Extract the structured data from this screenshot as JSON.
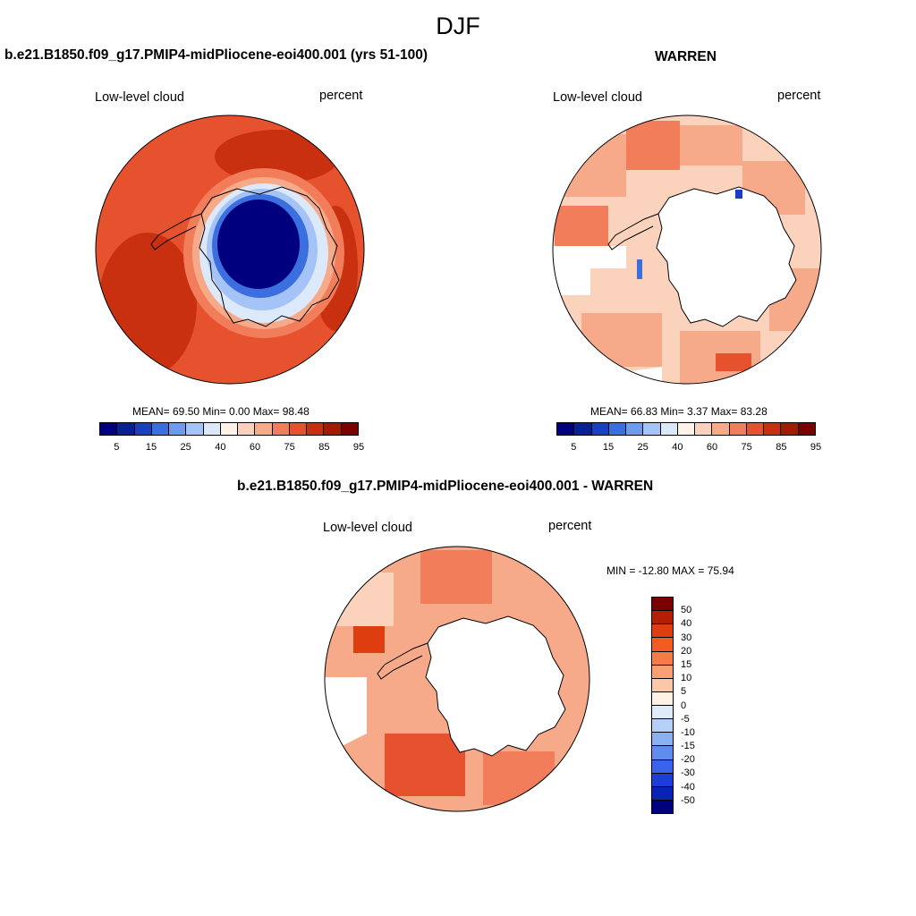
{
  "figure": {
    "title": "DJF"
  },
  "panels": [
    {
      "title": "b.e21.B1850.f09_g17.PMIP4-midPliocene-eoi400.001 (yrs 51-100)",
      "left_label": "Low-level cloud",
      "right_label": "percent",
      "stats": "MEAN=  69.50  Min=   0.00  Max=  98.48"
    },
    {
      "title": "WARREN",
      "left_label": "Low-level cloud",
      "right_label": "percent",
      "stats": "MEAN=  66.83  Min=   3.37  Max=  83.28"
    },
    {
      "title": "b.e21.B1850.f09_g17.PMIP4-midPliocene-eoi400.001 - WARREN",
      "left_label": "Low-level cloud",
      "right_label": "percent",
      "stats": "MIN = -12.80 MAX =  75.94"
    }
  ],
  "colorbar_main": {
    "colors": [
      "#00007f",
      "#0a1e96",
      "#1a3fc2",
      "#3b6fe0",
      "#6f9bef",
      "#a5c3f6",
      "#dbe9fb",
      "#fff3e9",
      "#fbd3bd",
      "#f7aa8a",
      "#f27d5a",
      "#e5522d",
      "#c8300f",
      "#a31a05",
      "#7d0000"
    ],
    "tick_labels": [
      "5",
      "15",
      "25",
      "40",
      "60",
      "75",
      "85",
      "95"
    ]
  },
  "colorbar_diff": {
    "colors": [
      "#7d0000",
      "#b31e04",
      "#de3d10",
      "#f35b25",
      "#f67c47",
      "#f8a074",
      "#fbc7a8",
      "#fff1e3",
      "#dfebfb",
      "#b6cff7",
      "#8cb1f1",
      "#5f8ded",
      "#3863ea",
      "#1b3fd6",
      "#0a22b5",
      "#00007f"
    ],
    "tick_labels": [
      "50",
      "40",
      "30",
      "20",
      "15",
      "10",
      "5",
      "0",
      "-5",
      "-10",
      "-15",
      "-20",
      "-30",
      "-40",
      "-50"
    ]
  },
  "map_colors": {
    "land": "#ffffff",
    "coast": "#000000",
    "missing": "#ffffff",
    "high_cloud": "#c8300f",
    "deep_red": "#b31e04",
    "mid_red": "#e5522d",
    "light_orange": "#f7aa8a",
    "pale_orange": "#fbd3bd",
    "low_cloud": "#00007f",
    "light_blue": "#a5c3f6"
  }
}
